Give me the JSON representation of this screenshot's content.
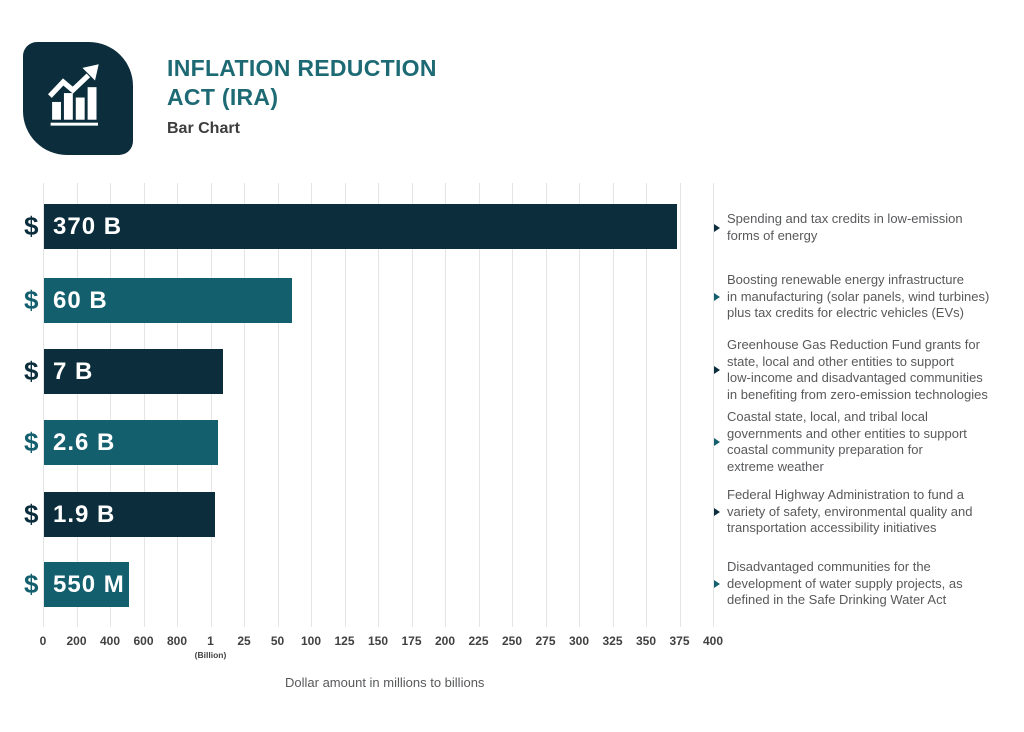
{
  "header": {
    "title_line1": "INFLATION REDUCTION",
    "title_line2": "ACT (IRA)",
    "subtitle": "Bar Chart",
    "logo_icon": "bar-chart-trend-icon"
  },
  "colors": {
    "dark_navy": "#0b2d3c",
    "teal": "#135f6e",
    "title_teal": "#1e6a74",
    "gridline": "#e5e5e5",
    "axis_text": "#414042",
    "description_text": "#58595b"
  },
  "chart_data": {
    "type": "bar",
    "orientation": "horizontal",
    "title": "Inflation Reduction Act (IRA)",
    "subtitle": "Bar Chart",
    "xlabel": "Dollar amount in millions to billions",
    "grid": true,
    "x_axis": {
      "ticks": [
        "0",
        "200",
        "400",
        "600",
        "800",
        "1",
        "25",
        "50",
        "100",
        "125",
        "150",
        "175",
        "200",
        "225",
        "250",
        "275",
        "300",
        "325",
        "350",
        "375",
        "400"
      ],
      "sublabel": "(Billion)",
      "sublabel_tick_index": 5
    },
    "bars": [
      {
        "currency_symbol": "$",
        "value_label": "370 B",
        "amount_millions": 370000,
        "color": "#0b2d3c",
        "description": "Spending and tax credits in low-emission\nforms of energy"
      },
      {
        "currency_symbol": "$",
        "value_label": "60 B",
        "amount_millions": 60000,
        "color": "#135f6e",
        "description": "Boosting renewable energy infrastructure\nin manufacturing (solar panels, wind turbines)\nplus tax credits for electric vehicles (EVs)"
      },
      {
        "currency_symbol": "$",
        "value_label": "7 B",
        "amount_millions": 7000,
        "color": "#0b2d3c",
        "description": "Greenhouse Gas Reduction Fund grants for\nstate, local and other entities to support\nlow-income and disadvantaged communities\nin benefiting from zero-emission technologies"
      },
      {
        "currency_symbol": "$",
        "value_label": "2.6 B",
        "amount_millions": 2600,
        "color": "#135f6e",
        "description": "Coastal state, local, and tribal local\ngovernments and other entities to support\ncoastal community preparation for\nextreme weather"
      },
      {
        "currency_symbol": "$",
        "value_label": "1.9 B",
        "amount_millions": 1900,
        "color": "#0b2d3c",
        "description": "Federal Highway Administration to fund a\nvariety of safety, environmental quality and\ntransportation accessibility initiatives"
      },
      {
        "currency_symbol": "$",
        "value_label": "550 M",
        "amount_millions": 550,
        "color": "#135f6e",
        "description": "Disadvantaged communities for the\ndevelopment of water supply projects, as\ndefined in the Safe Drinking Water Act"
      }
    ]
  },
  "footer": {
    "caption": "Dollar amount in millions to billions"
  }
}
